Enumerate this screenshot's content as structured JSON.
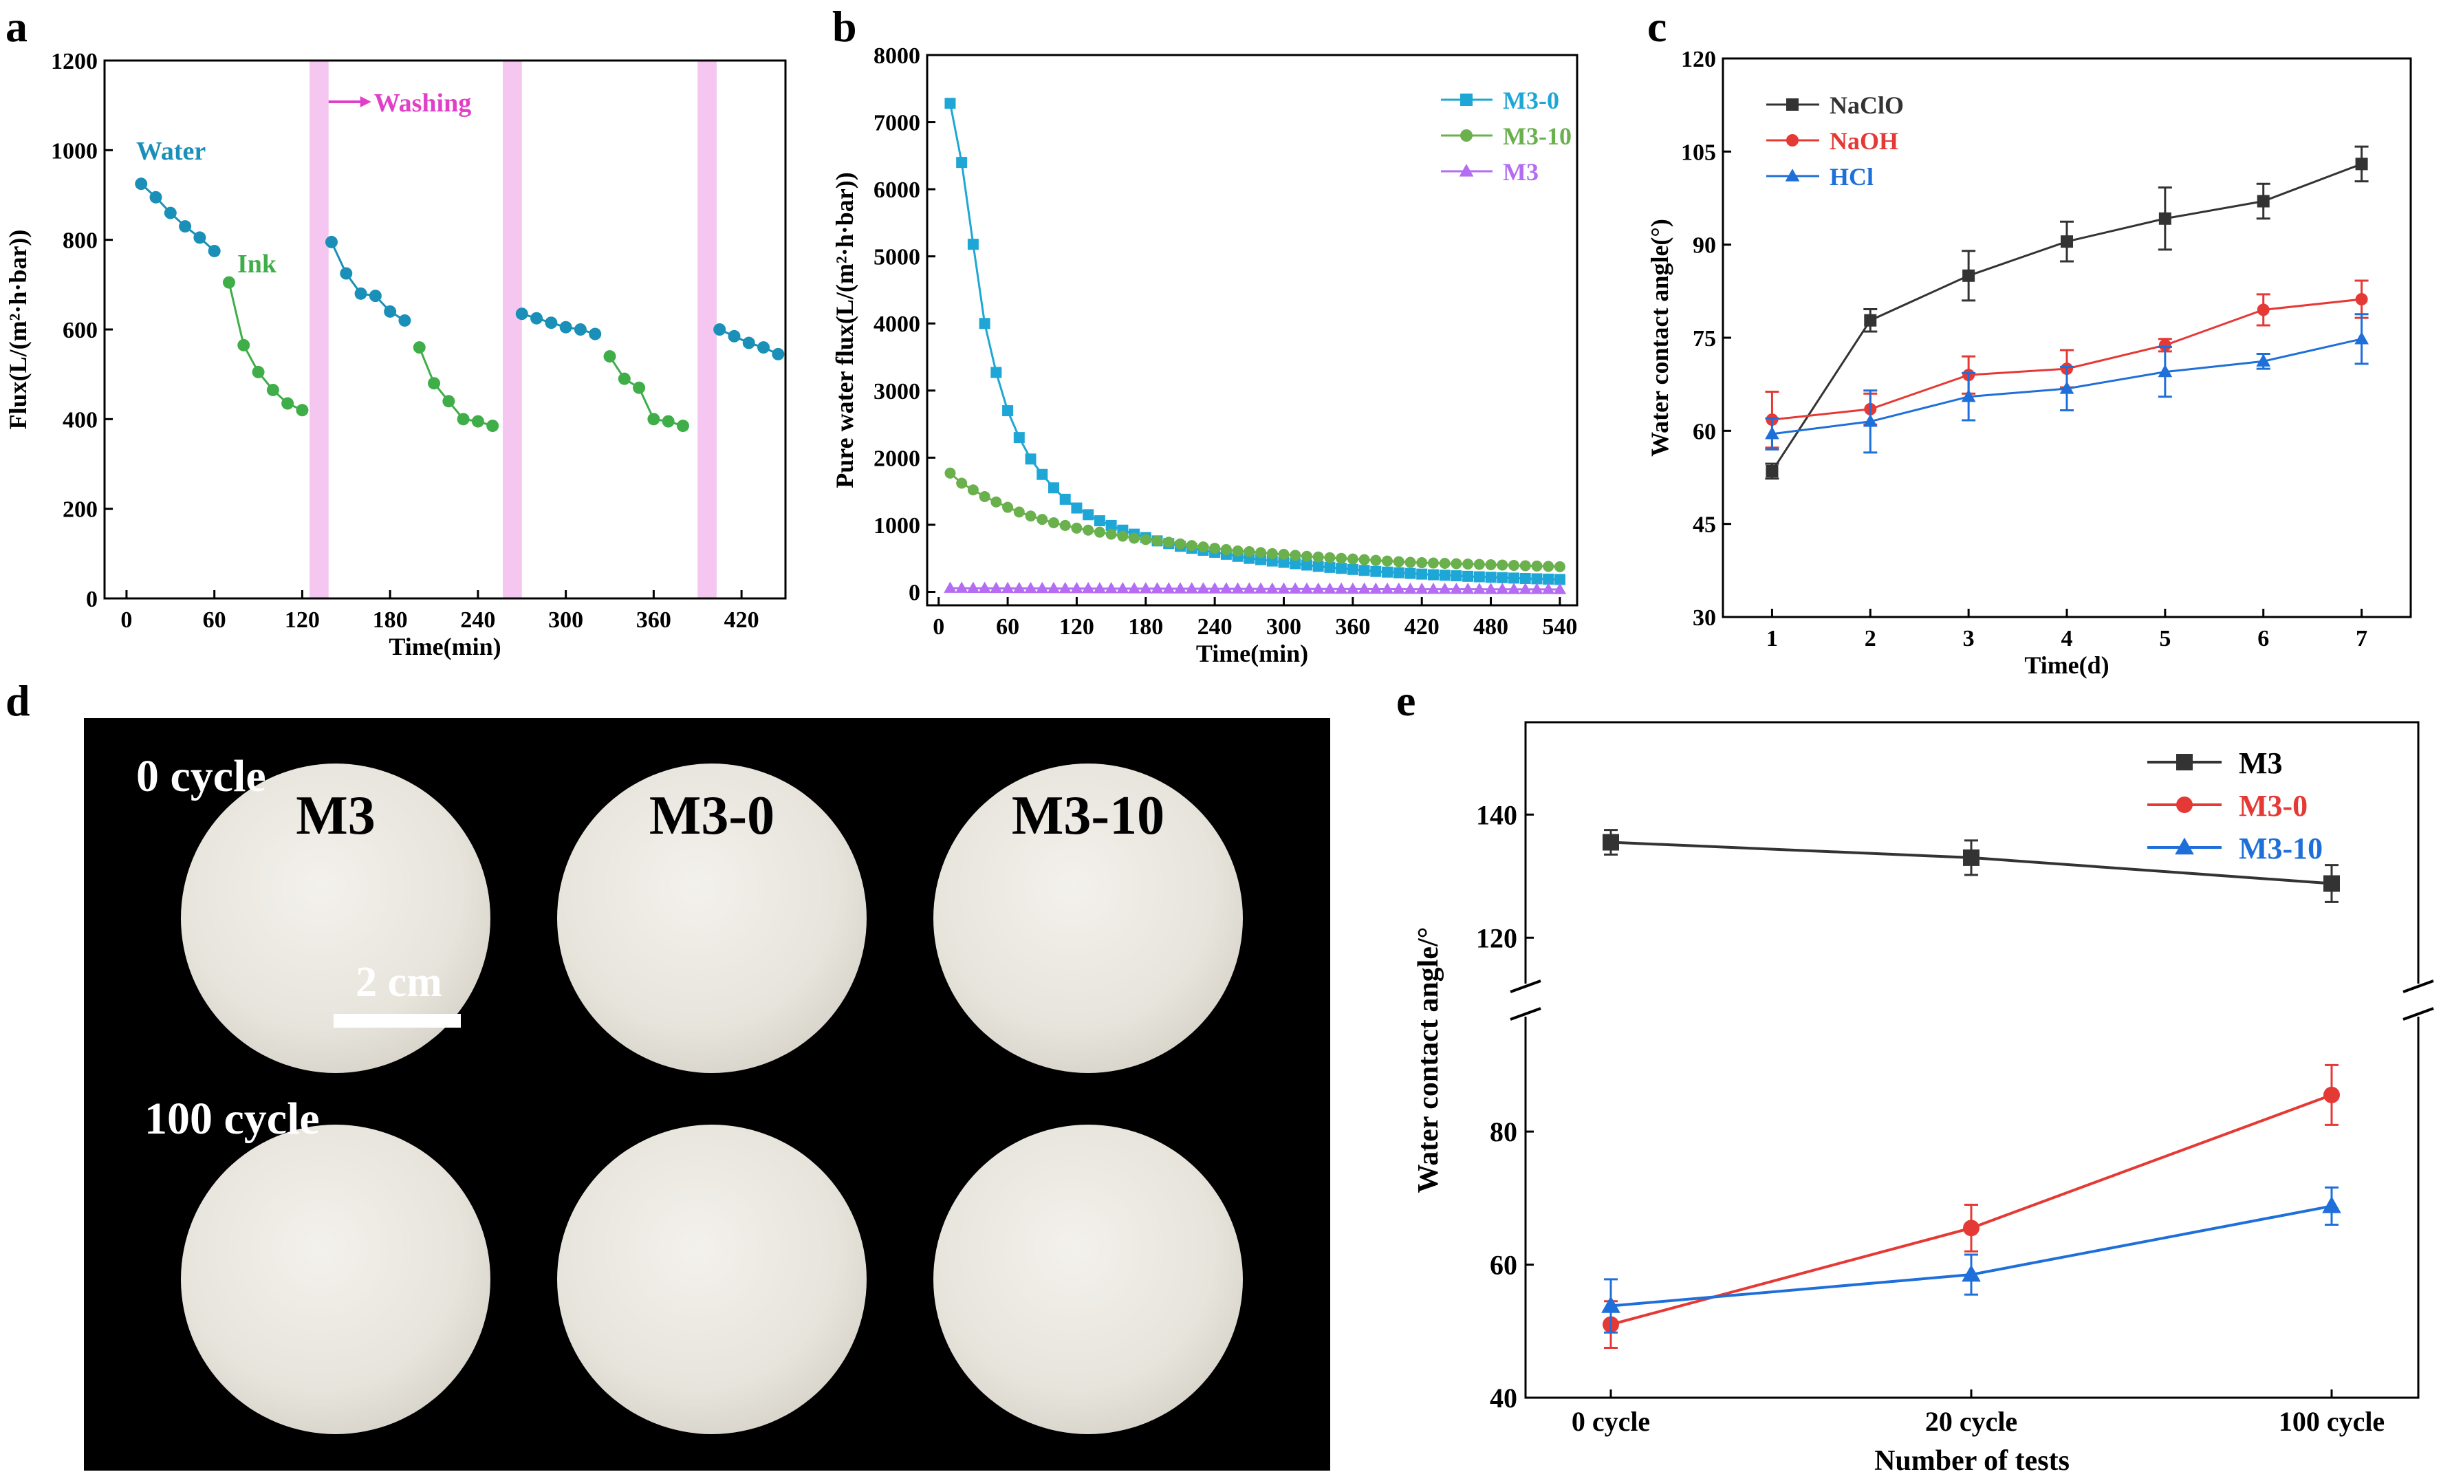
{
  "panels": {
    "a": "a",
    "b": "b",
    "c": "c",
    "d": "d",
    "e": "e"
  },
  "colors": {
    "water": "#1a8fb8",
    "ink": "#3fae49",
    "washing": "#f5c6ef",
    "washing_text": "#e040c8",
    "m30": "#1ea7d6",
    "m310": "#6ab04c",
    "m3": "#b36cf2",
    "naclo": "#333333",
    "naoh": "#e53935",
    "hcl": "#1e6fd9",
    "e_m3": "#333333",
    "e_m30": "#e53935",
    "e_m310": "#1e6fd9"
  },
  "photo": {
    "label_0": "0 cycle",
    "label_100": "100 cycle",
    "m3": "M3",
    "m30": "M3-0",
    "m310": "M3-10",
    "scale": "2 cm"
  },
  "chart_data": [
    {
      "id": "a",
      "type": "line",
      "xlabel": "Time(min)",
      "ylabel": "Flux(L/(m²·h·bar))",
      "xlim": [
        -15,
        450
      ],
      "ylim": [
        0,
        1200
      ],
      "xticks": [
        0,
        60,
        120,
        180,
        240,
        300,
        360,
        420
      ],
      "yticks": [
        0,
        200,
        400,
        600,
        800,
        1000,
        1200
      ],
      "annotations": {
        "water": "Water",
        "ink": "Ink",
        "washing": "Washing"
      },
      "washing_bands": [
        [
          125,
          138
        ],
        [
          257,
          270
        ],
        [
          390,
          403
        ]
      ],
      "series": [
        {
          "name": "Water",
          "segments": [
            {
              "x": [
                10,
                20,
                30,
                40,
                50,
                60
              ],
              "y": [
                925,
                895,
                860,
                830,
                805,
                775
              ]
            },
            {
              "x": [
                140,
                150,
                160,
                170,
                180,
                190
              ],
              "y": [
                795,
                725,
                680,
                675,
                640,
                620
              ]
            },
            {
              "x": [
                270,
                280,
                290,
                300,
                310,
                320
              ],
              "y": [
                635,
                625,
                615,
                605,
                600,
                590
              ]
            },
            {
              "x": [
                405,
                415,
                425,
                435,
                445
              ],
              "y": [
                600,
                585,
                570,
                560,
                545
              ]
            }
          ]
        },
        {
          "name": "Ink",
          "segments": [
            {
              "x": [
                70,
                80,
                90,
                100,
                110,
                120
              ],
              "y": [
                705,
                565,
                505,
                465,
                435,
                420
              ]
            },
            {
              "x": [
                200,
                210,
                220,
                230,
                240,
                250
              ],
              "y": [
                560,
                480,
                440,
                400,
                395,
                385
              ]
            },
            {
              "x": [
                330,
                340,
                350,
                360,
                370,
                380
              ],
              "y": [
                540,
                490,
                470,
                400,
                395,
                385
              ]
            }
          ]
        }
      ]
    },
    {
      "id": "b",
      "type": "line",
      "xlabel": "Time(min)",
      "ylabel": "Pure water flux(L/(m²·h·bar))",
      "xlim": [
        -10,
        555
      ],
      "ylim": [
        -200,
        8000
      ],
      "xticks": [
        0,
        60,
        120,
        180,
        240,
        300,
        360,
        420,
        480,
        540
      ],
      "yticks": [
        0,
        1000,
        2000,
        3000,
        4000,
        5000,
        6000,
        7000,
        8000
      ],
      "x": [
        10,
        20,
        30,
        40,
        50,
        60,
        70,
        80,
        90,
        100,
        110,
        120,
        130,
        140,
        150,
        160,
        170,
        180,
        190,
        200,
        210,
        220,
        230,
        240,
        250,
        260,
        270,
        280,
        290,
        300,
        310,
        320,
        330,
        340,
        350,
        360,
        370,
        380,
        390,
        400,
        410,
        420,
        430,
        440,
        450,
        460,
        470,
        480,
        490,
        500,
        510,
        520,
        530,
        540
      ],
      "series": [
        {
          "name": "M3-0",
          "values": [
            7280,
            6400,
            5180,
            4000,
            3270,
            2700,
            2300,
            1980,
            1750,
            1550,
            1380,
            1250,
            1150,
            1060,
            990,
            920,
            860,
            810,
            760,
            720,
            680,
            650,
            620,
            590,
            560,
            530,
            500,
            480,
            460,
            440,
            420,
            400,
            380,
            365,
            350,
            335,
            320,
            305,
            295,
            285,
            275,
            265,
            255,
            248,
            240,
            232,
            225,
            218,
            212,
            206,
            200,
            195,
            190,
            185
          ]
        },
        {
          "name": "M3-10",
          "values": [
            1770,
            1620,
            1520,
            1420,
            1340,
            1260,
            1190,
            1130,
            1080,
            1030,
            990,
            950,
            920,
            890,
            860,
            830,
            800,
            780,
            760,
            740,
            715,
            690,
            670,
            650,
            630,
            610,
            600,
            585,
            570,
            560,
            545,
            530,
            520,
            510,
            500,
            490,
            480,
            470,
            460,
            450,
            440,
            435,
            430,
            425,
            420,
            415,
            410,
            405,
            400,
            395,
            390,
            385,
            380,
            375
          ]
        },
        {
          "name": "M3",
          "values": [
            55,
            55,
            54,
            54,
            53,
            53,
            52,
            52,
            51,
            51,
            50,
            50,
            50,
            49,
            49,
            49,
            48,
            48,
            48,
            47,
            47,
            47,
            46,
            46,
            46,
            45,
            45,
            45,
            44,
            44,
            44,
            43,
            43,
            43,
            42,
            42,
            42,
            41,
            41,
            41,
            40,
            40,
            40,
            40,
            39,
            39,
            39,
            38,
            38,
            38,
            37,
            37,
            37,
            36
          ]
        }
      ]
    },
    {
      "id": "c",
      "type": "line",
      "xlabel": "Time(d)",
      "ylabel": "Water contact angle(°)",
      "xlim": [
        0.5,
        7.5
      ],
      "ylim": [
        30,
        120
      ],
      "xticks": [
        1,
        2,
        3,
        4,
        5,
        6,
        7
      ],
      "yticks": [
        30,
        45,
        60,
        75,
        90,
        105,
        120
      ],
      "x": [
        1,
        2,
        3,
        4,
        5,
        6,
        7
      ],
      "series": [
        {
          "name": "NaClO",
          "values": [
            53.5,
            77.8,
            85.0,
            90.5,
            94.2,
            97.0,
            103.0
          ],
          "errors": [
            1.2,
            1.8,
            4.0,
            3.2,
            5.0,
            2.8,
            2.8
          ]
        },
        {
          "name": "NaOH",
          "values": [
            61.8,
            63.5,
            69.0,
            70.0,
            73.8,
            79.5,
            81.2
          ],
          "errors": [
            4.5,
            2.5,
            3.0,
            3.0,
            1.0,
            2.5,
            3.0
          ]
        },
        {
          "name": "HCl",
          "values": [
            59.5,
            61.5,
            65.5,
            66.8,
            69.5,
            71.2,
            74.8
          ],
          "errors": [
            2.5,
            5.0,
            3.8,
            3.5,
            4.0,
            1.2,
            4.0
          ]
        }
      ]
    },
    {
      "id": "e",
      "type": "line",
      "xlabel": "Number of tests",
      "ylabel": "Water contact angle/°",
      "categories": [
        "0 cycle",
        "20 cycle",
        "100 cycle"
      ],
      "axis_break": {
        "lower": [
          40,
          95
        ],
        "upper": [
          115,
          155
        ]
      },
      "yticks": [
        40,
        60,
        80,
        120,
        140
      ],
      "series": [
        {
          "name": "M3",
          "values": [
            135.5,
            133.0,
            128.8
          ],
          "errors": [
            2.0,
            2.8,
            3.0
          ]
        },
        {
          "name": "M3-0",
          "values": [
            51.0,
            65.5,
            85.5
          ],
          "errors": [
            3.5,
            3.5,
            4.5
          ]
        },
        {
          "name": "M3-10",
          "values": [
            53.8,
            58.5,
            68.8
          ],
          "errors": [
            4.0,
            3.0,
            2.8
          ]
        }
      ]
    }
  ]
}
